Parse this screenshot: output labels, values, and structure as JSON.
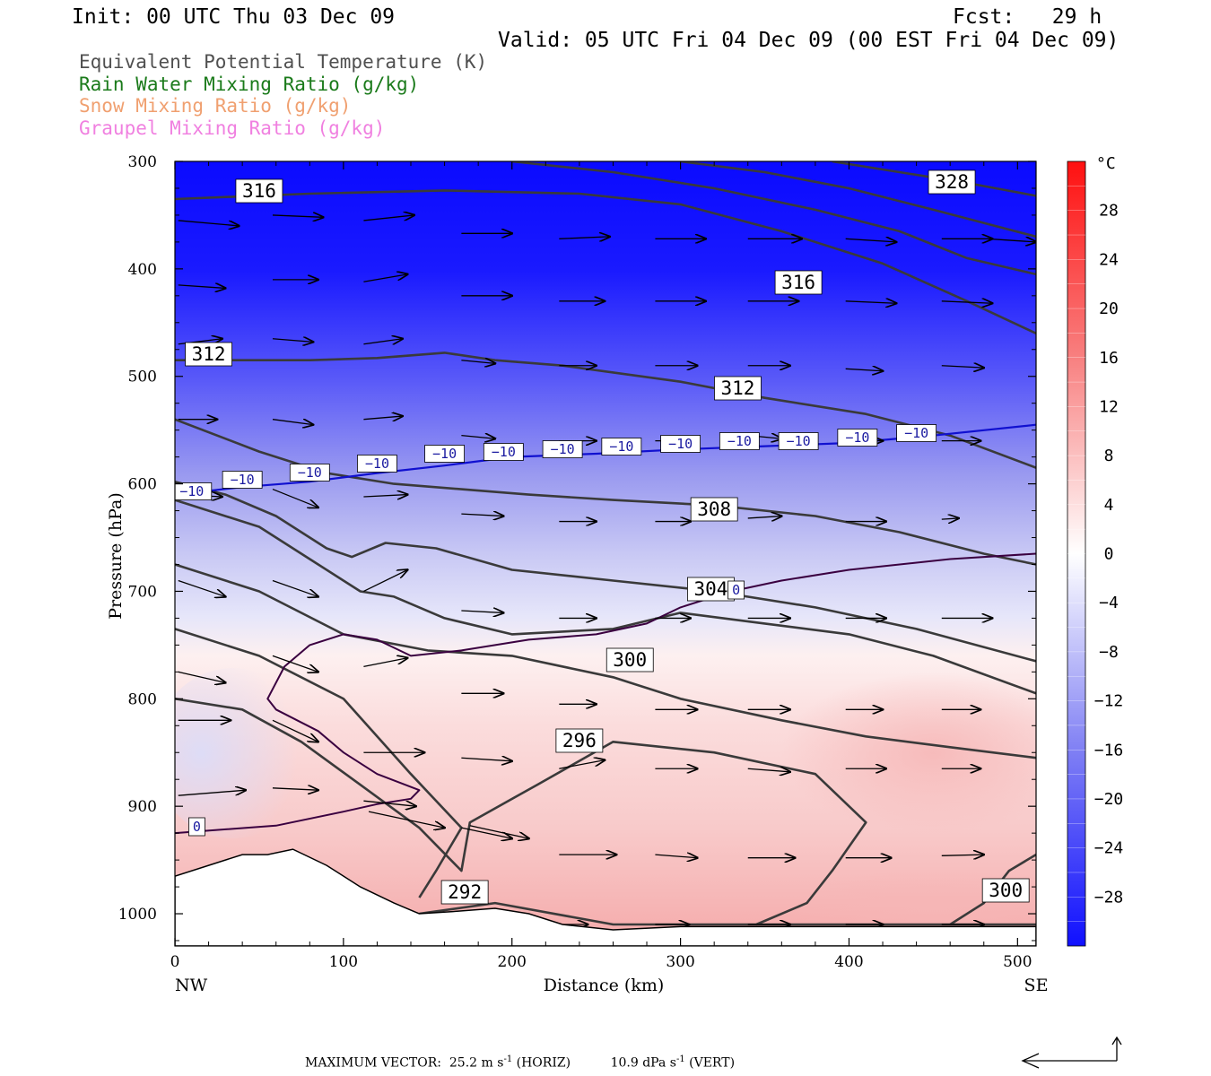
{
  "header": {
    "init": "Init: 00 UTC Thu 03 Dec 09",
    "fcst": "Fcst:   29 h",
    "valid": "Valid: 05 UTC Fri 04 Dec 09 (00 EST Fri 04 Dec 09)"
  },
  "legend": [
    {
      "text": "Equivalent Potential Temperature (K)",
      "color": "#505050"
    },
    {
      "text": "Rain Water Mixing Ratio (g/kg)",
      "color": "#1a7a1a"
    },
    {
      "text": "Snow Mixing Ratio (g/kg)",
      "color": "#f0a070"
    },
    {
      "text": "Graupel Mixing Ratio (g/kg)",
      "color": "#f080e0"
    }
  ],
  "footer": {
    "max_vector_label": "MAXIMUM VECTOR:",
    "horiz_value": "25.2 m s",
    "horiz_exp": "-1",
    "horiz_unit": "(HORIZ)",
    "vert_value": "10.9 dPa s",
    "vert_exp": "-1",
    "vert_unit": "(VERT)"
  },
  "chart_data": {
    "type": "cross-section",
    "xlabel": "Distance (km)",
    "ylabel": "Pressure (hPa)",
    "x_ticks": [
      0,
      100,
      200,
      300,
      400,
      500
    ],
    "xlim": [
      0,
      511
    ],
    "y_ticks": [
      300,
      400,
      500,
      600,
      700,
      800,
      900,
      1000
    ],
    "ylim": [
      300,
      1030
    ],
    "x_end_labels": {
      "left": "NW",
      "right": "SE"
    },
    "colorbar": {
      "unit": "°C",
      "range": [
        -32,
        32
      ],
      "ticks": [
        28,
        24,
        20,
        16,
        12,
        8,
        4,
        0,
        -4,
        -8,
        -12,
        -16,
        -20,
        -24,
        -28
      ],
      "colors": {
        "min": "#0000ff",
        "zero": "#ffffff",
        "max": "#ff0000"
      }
    },
    "theta_e_contours": [
      {
        "value": 292,
        "label": "292",
        "points": [
          [
            145,
            1000
          ],
          [
            190,
            990
          ],
          [
            260,
            1010
          ],
          [
            511,
            1010
          ]
        ]
      },
      {
        "value": 296,
        "label": "296",
        "points": [
          [
            0,
            800
          ],
          [
            40,
            810
          ],
          [
            75,
            840
          ],
          [
            110,
            880
          ],
          [
            145,
            920
          ],
          [
            170,
            960
          ],
          [
            175,
            915
          ],
          [
            215,
            880
          ],
          [
            260,
            840
          ],
          [
            320,
            850
          ],
          [
            380,
            870
          ],
          [
            410,
            915
          ],
          [
            390,
            960
          ],
          [
            375,
            990
          ],
          [
            345,
            1010
          ]
        ]
      },
      {
        "value": 300,
        "label": "300",
        "points": [
          [
            0,
            735
          ],
          [
            50,
            760
          ],
          [
            100,
            800
          ],
          [
            140,
            870
          ],
          [
            170,
            920
          ],
          [
            155,
            960
          ],
          [
            145,
            985
          ]
        ]
      },
      {
        "value": 300,
        "label": "300",
        "points": [
          [
            0,
            675
          ],
          [
            50,
            700
          ],
          [
            100,
            740
          ],
          [
            150,
            755
          ],
          [
            200,
            760
          ],
          [
            260,
            780
          ],
          [
            300,
            800
          ],
          [
            360,
            820
          ],
          [
            410,
            835
          ],
          [
            460,
            845
          ],
          [
            511,
            855
          ]
        ]
      },
      {
        "value": 300,
        "label": "300",
        "points": [
          [
            460,
            1010
          ],
          [
            480,
            990
          ],
          [
            495,
            960
          ],
          [
            511,
            945
          ]
        ]
      },
      {
        "value": 304,
        "label": "304",
        "points": [
          [
            0,
            615
          ],
          [
            50,
            640
          ],
          [
            80,
            670
          ],
          [
            110,
            700
          ],
          [
            130,
            705
          ],
          [
            160,
            725
          ],
          [
            200,
            740
          ],
          [
            260,
            735
          ],
          [
            300,
            720
          ],
          [
            350,
            730
          ],
          [
            400,
            740
          ],
          [
            450,
            760
          ],
          [
            511,
            795
          ]
        ]
      },
      {
        "value": 308,
        "label": "308",
        "points": [
          [
            0,
            540
          ],
          [
            50,
            570
          ],
          [
            90,
            590
          ],
          [
            130,
            600
          ],
          [
            170,
            605
          ],
          [
            210,
            610
          ],
          [
            260,
            615
          ],
          [
            320,
            620
          ],
          [
            380,
            630
          ],
          [
            430,
            645
          ],
          [
            480,
            665
          ],
          [
            511,
            675
          ]
        ]
      },
      {
        "value": 308,
        "label": "308",
        "points": [
          [
            0,
            598
          ],
          [
            30,
            610
          ],
          [
            60,
            630
          ],
          [
            90,
            660
          ],
          [
            105,
            668
          ],
          [
            125,
            655
          ],
          [
            155,
            660
          ],
          [
            200,
            680
          ],
          [
            260,
            690
          ],
          [
            320,
            700
          ],
          [
            380,
            715
          ],
          [
            440,
            735
          ],
          [
            511,
            765
          ]
        ]
      },
      {
        "value": 312,
        "label": "312",
        "points": [
          [
            0,
            485
          ],
          [
            40,
            485
          ],
          [
            80,
            485
          ],
          [
            120,
            483
          ],
          [
            160,
            478
          ],
          [
            190,
            485
          ],
          [
            230,
            490
          ],
          [
            300,
            505
          ],
          [
            350,
            520
          ],
          [
            410,
            535
          ],
          [
            460,
            555
          ],
          [
            511,
            585
          ]
        ]
      },
      {
        "value": 316,
        "label": "316",
        "points": [
          [
            0,
            335
          ],
          [
            80,
            330
          ],
          [
            160,
            327
          ],
          [
            240,
            330
          ],
          [
            300,
            340
          ],
          [
            360,
            365
          ],
          [
            420,
            395
          ],
          [
            470,
            430
          ],
          [
            511,
            460
          ]
        ]
      },
      {
        "value": 320,
        "label": "",
        "points": [
          [
            200,
            300
          ],
          [
            260,
            310
          ],
          [
            320,
            325
          ],
          [
            380,
            345
          ],
          [
            430,
            365
          ],
          [
            470,
            390
          ],
          [
            511,
            405
          ]
        ]
      },
      {
        "value": 324,
        "label": "",
        "points": [
          [
            300,
            300
          ],
          [
            350,
            310
          ],
          [
            400,
            325
          ],
          [
            450,
            345
          ],
          [
            511,
            370
          ]
        ]
      },
      {
        "value": 328,
        "label": "328",
        "points": [
          [
            390,
            300
          ],
          [
            430,
            310
          ],
          [
            470,
            320
          ],
          [
            511,
            332
          ]
        ]
      }
    ],
    "isotherms": [
      {
        "value": -10,
        "label": "-10",
        "points": [
          [
            0,
            610
          ],
          [
            40,
            603
          ],
          [
            80,
            598
          ],
          [
            120,
            590
          ],
          [
            160,
            583
          ],
          [
            200,
            575
          ],
          [
            250,
            572
          ],
          [
            300,
            568
          ],
          [
            350,
            565
          ],
          [
            400,
            562
          ],
          [
            450,
            555
          ],
          [
            511,
            545
          ]
        ]
      },
      {
        "value": 0,
        "label": "0",
        "points": [
          [
            0,
            925
          ],
          [
            60,
            918
          ],
          [
            100,
            905
          ],
          [
            120,
            898
          ],
          [
            140,
            893
          ],
          [
            145,
            885
          ],
          [
            120,
            870
          ],
          [
            100,
            850
          ],
          [
            85,
            830
          ],
          [
            60,
            810
          ],
          [
            55,
            800
          ],
          [
            65,
            770
          ],
          [
            80,
            750
          ],
          [
            100,
            740
          ],
          [
            120,
            745
          ],
          [
            140,
            760
          ],
          [
            170,
            755
          ],
          [
            210,
            745
          ],
          [
            250,
            740
          ],
          [
            280,
            730
          ],
          [
            300,
            715
          ],
          [
            330,
            700
          ],
          [
            360,
            690
          ],
          [
            400,
            680
          ],
          [
            460,
            670
          ],
          [
            511,
            665
          ]
        ]
      }
    ],
    "wind_vectors": [
      [
        2,
        355,
        38,
        360
      ],
      [
        58,
        350,
        88,
        352
      ],
      [
        112,
        355,
        142,
        350
      ],
      [
        170,
        367,
        200,
        367
      ],
      [
        228,
        372,
        258,
        370
      ],
      [
        285,
        372,
        315,
        372
      ],
      [
        340,
        372,
        372,
        372
      ],
      [
        398,
        372,
        428,
        375
      ],
      [
        455,
        372,
        485,
        372
      ],
      [
        482,
        372,
        511,
        375
      ],
      [
        2,
        415,
        30,
        418
      ],
      [
        58,
        410,
        85,
        410
      ],
      [
        112,
        412,
        138,
        405
      ],
      [
        170,
        425,
        200,
        425
      ],
      [
        228,
        430,
        255,
        430
      ],
      [
        285,
        430,
        315,
        430
      ],
      [
        340,
        430,
        370,
        430
      ],
      [
        398,
        430,
        428,
        432
      ],
      [
        455,
        430,
        485,
        432
      ],
      [
        2,
        470,
        28,
        465
      ],
      [
        58,
        465,
        82,
        468
      ],
      [
        112,
        470,
        135,
        465
      ],
      [
        170,
        485,
        190,
        488
      ],
      [
        228,
        490,
        250,
        490
      ],
      [
        285,
        490,
        310,
        490
      ],
      [
        340,
        490,
        365,
        490
      ],
      [
        398,
        493,
        420,
        495
      ],
      [
        455,
        490,
        480,
        492
      ],
      [
        2,
        540,
        25,
        540
      ],
      [
        58,
        540,
        82,
        545
      ],
      [
        112,
        540,
        135,
        537
      ],
      [
        170,
        555,
        190,
        558
      ],
      [
        228,
        560,
        250,
        560
      ],
      [
        285,
        560,
        306,
        560
      ],
      [
        340,
        555,
        360,
        558
      ],
      [
        398,
        560,
        420,
        560
      ],
      [
        455,
        560,
        478,
        560
      ],
      [
        2,
        610,
        28,
        612
      ],
      [
        58,
        605,
        85,
        622
      ],
      [
        112,
        612,
        138,
        610
      ],
      [
        170,
        628,
        195,
        630
      ],
      [
        228,
        635,
        250,
        635
      ],
      [
        285,
        635,
        306,
        635
      ],
      [
        340,
        632,
        360,
        630
      ],
      [
        398,
        635,
        422,
        635
      ],
      [
        455,
        633,
        465,
        632
      ],
      [
        2,
        690,
        30,
        705
      ],
      [
        58,
        690,
        85,
        705
      ],
      [
        112,
        700,
        138,
        680
      ],
      [
        170,
        718,
        195,
        720
      ],
      [
        228,
        725,
        250,
        725
      ],
      [
        285,
        725,
        306,
        725
      ],
      [
        340,
        725,
        365,
        725
      ],
      [
        398,
        725,
        422,
        725
      ],
      [
        455,
        725,
        485,
        725
      ],
      [
        2,
        775,
        30,
        785
      ],
      [
        58,
        760,
        85,
        775
      ],
      [
        112,
        770,
        138,
        762
      ],
      [
        170,
        795,
        195,
        795
      ],
      [
        228,
        805,
        250,
        805
      ],
      [
        285,
        810,
        310,
        810
      ],
      [
        340,
        810,
        365,
        810
      ],
      [
        398,
        810,
        420,
        810
      ],
      [
        455,
        810,
        478,
        810
      ],
      [
        2,
        820,
        33,
        820
      ],
      [
        58,
        820,
        85,
        840
      ],
      [
        112,
        850,
        148,
        850
      ],
      [
        170,
        855,
        200,
        858
      ],
      [
        228,
        865,
        255,
        857
      ],
      [
        285,
        865,
        310,
        865
      ],
      [
        340,
        865,
        365,
        868
      ],
      [
        398,
        865,
        422,
        865
      ],
      [
        455,
        865,
        478,
        865
      ],
      [
        2,
        890,
        42,
        885
      ],
      [
        58,
        883,
        85,
        885
      ],
      [
        112,
        895,
        143,
        900
      ],
      [
        170,
        920,
        200,
        930
      ],
      [
        228,
        945,
        262,
        945
      ],
      [
        285,
        945,
        310,
        948
      ],
      [
        340,
        948,
        368,
        948
      ],
      [
        398,
        948,
        425,
        948
      ],
      [
        455,
        946,
        480,
        945
      ],
      [
        115,
        905,
        160,
        920
      ],
      [
        175,
        918,
        210,
        930
      ],
      [
        230,
        1010,
        245,
        1010
      ],
      [
        285,
        1010,
        305,
        1010
      ],
      [
        340,
        1010,
        365,
        1010
      ],
      [
        398,
        1010,
        420,
        1010
      ],
      [
        455,
        1010,
        480,
        1010
      ]
    ]
  }
}
